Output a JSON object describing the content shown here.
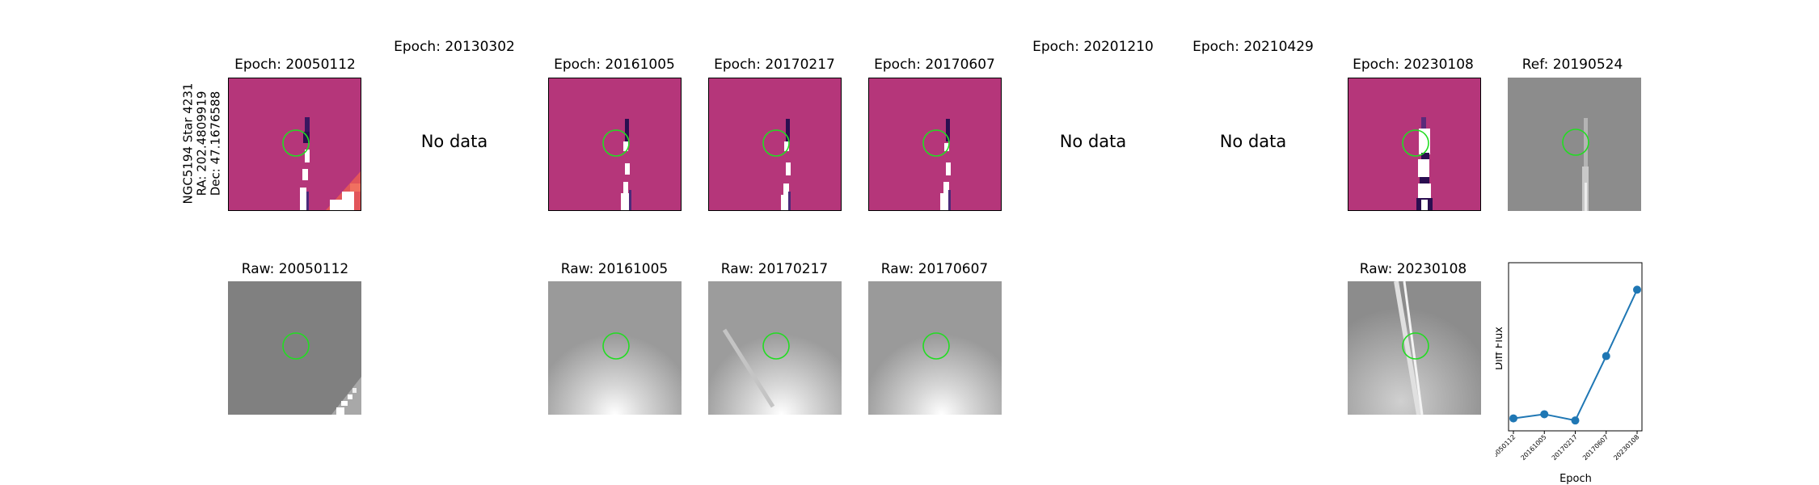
{
  "star_label": {
    "line1": "NGC5194 Star 4231",
    "line2": "RA: 202.4809919",
    "line3": "Dec: 47.1676588"
  },
  "top_row": [
    {
      "title": "Epoch: 20050112",
      "state": "image"
    },
    {
      "title": "Epoch: 20130302",
      "state": "no-data",
      "message": "No data"
    },
    {
      "title": "Epoch: 20161005",
      "state": "image"
    },
    {
      "title": "Epoch: 20170217",
      "state": "image"
    },
    {
      "title": "Epoch: 20170607",
      "state": "image"
    },
    {
      "title": "Epoch: 20201210",
      "state": "no-data",
      "message": "No data"
    },
    {
      "title": "Epoch: 20210429",
      "state": "no-data",
      "message": "No data"
    },
    {
      "title": "Epoch: 20230108",
      "state": "image"
    },
    {
      "title": "Ref: 20190524",
      "state": "image"
    }
  ],
  "bottom_row": [
    {
      "title": "Raw: 20050112"
    },
    {
      "title": "Raw: 20161005"
    },
    {
      "title": "Raw: 20170217"
    },
    {
      "title": "Raw: 20170607"
    },
    {
      "title": "Raw: 20230108"
    }
  ],
  "colors": {
    "diff_background": "#b5367a",
    "aperture": "#22dd22",
    "series": "#1f77b4"
  },
  "chart_data": {
    "type": "line",
    "categories": [
      "20050112",
      "20161005",
      "20170217",
      "20170607",
      "20230108"
    ],
    "series": [
      {
        "values": [
          0.03,
          0.05,
          0.02,
          0.33,
          0.65
        ]
      }
    ],
    "xlabel": "Epoch",
    "ylabel": "Diff Flux",
    "ylim": [
      -0.03,
      0.78
    ],
    "grid": false
  }
}
